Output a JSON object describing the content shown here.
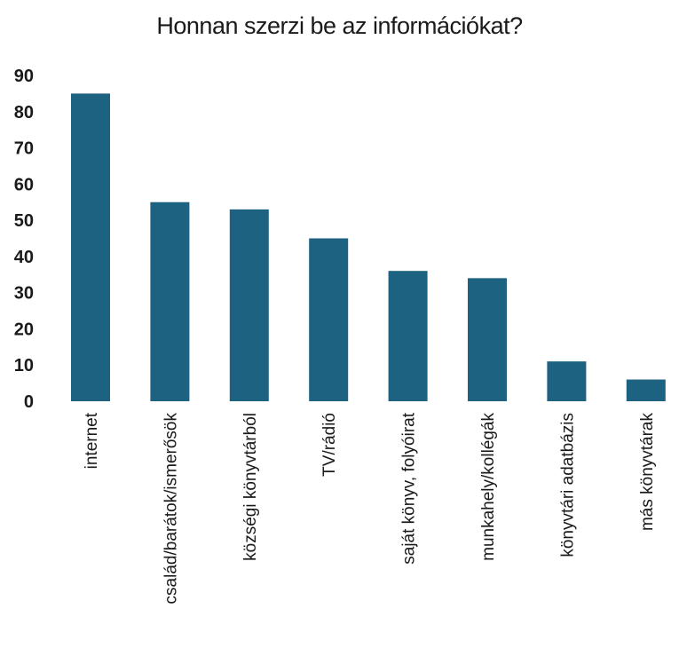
{
  "chart_data": {
    "type": "bar",
    "title": "Honnan szerzi be az információkat?",
    "xlabel": "",
    "ylabel": "",
    "ylim": [
      0,
      90
    ],
    "yticks": [
      0,
      10,
      20,
      30,
      40,
      50,
      60,
      70,
      80,
      90
    ],
    "categories": [
      "internet",
      "család/barátok/ismerősök",
      "községi könyvtárból",
      "TV/rádió",
      "saját könyv, folyóirat",
      "munkahely/kollégák",
      "könyvtári adatbázis",
      "más könyvtárak"
    ],
    "values": [
      85,
      55,
      53,
      45,
      36,
      34,
      11,
      6
    ],
    "bar_color": "#1d6281",
    "grid": false,
    "legend": "none"
  }
}
